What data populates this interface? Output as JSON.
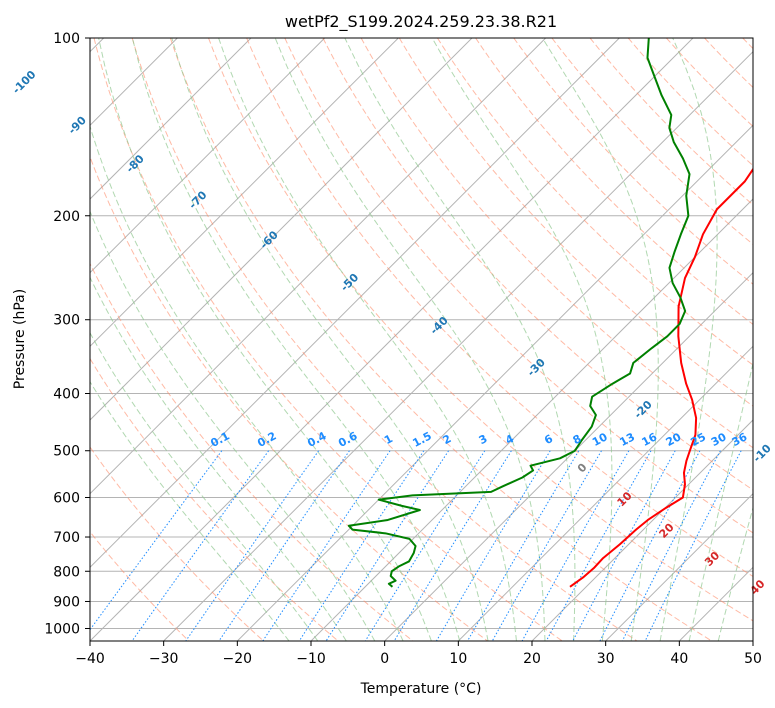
{
  "chart_data": {
    "type": "skew-t",
    "title": "wetPf2_S199.2024.259.23.38.R21",
    "xlabel": "Temperature (°C)",
    "ylabel": "Pressure (hPa)",
    "xlim": [
      -40,
      50
    ],
    "ylim": [
      1050,
      100
    ],
    "x_ticks": [
      "−40",
      "−30",
      "−20",
      "−10",
      "0",
      "10",
      "20",
      "30",
      "40",
      "50"
    ],
    "x_tick_values": [
      -40,
      -30,
      -20,
      -10,
      0,
      10,
      20,
      30,
      40,
      50
    ],
    "y_ticks": [
      "100",
      "200",
      "300",
      "400",
      "500",
      "600",
      "700",
      "800",
      "900",
      "1000"
    ],
    "y_tick_values": [
      100,
      200,
      300,
      400,
      500,
      600,
      700,
      800,
      900,
      1000
    ],
    "grid": true,
    "series": [
      {
        "color": "#ff0000",
        "points": [
          [
            17.8,
            850
          ],
          [
            18.3,
            820
          ],
          [
            18.5,
            790
          ],
          [
            18.4,
            760
          ],
          [
            18.8,
            720
          ],
          [
            19.0,
            680
          ],
          [
            19.3,
            655
          ],
          [
            20.1,
            625
          ],
          [
            21.0,
            600
          ],
          [
            19.5,
            570
          ],
          [
            17.8,
            545
          ],
          [
            16.5,
            520
          ],
          [
            15.6,
            500
          ],
          [
            14.2,
            470
          ],
          [
            12.0,
            440
          ],
          [
            9.0,
            410
          ],
          [
            6.0,
            385
          ],
          [
            2.5,
            355
          ],
          [
            -1.5,
            320
          ],
          [
            -5.5,
            285
          ],
          [
            -8.5,
            255
          ],
          [
            -10.0,
            235
          ],
          [
            -12.0,
            215
          ],
          [
            -13.5,
            195
          ],
          [
            -13.5,
            175
          ],
          [
            -14.5,
            160
          ],
          [
            -16.5,
            145
          ],
          [
            -19.5,
            130
          ],
          [
            -24.0,
            120
          ],
          [
            -27.5,
            108
          ],
          [
            -30.5,
            100
          ]
        ]
      },
      {
        "color": "#008000",
        "points": [
          [
            -6.3,
            850
          ],
          [
            -7.2,
            840
          ],
          [
            -6.7,
            830
          ],
          [
            -8.0,
            815
          ],
          [
            -8.5,
            800
          ],
          [
            -8.2,
            785
          ],
          [
            -7.5,
            770
          ],
          [
            -8.0,
            745
          ],
          [
            -8.7,
            725
          ],
          [
            -10.5,
            705
          ],
          [
            -14.5,
            690
          ],
          [
            -19.5,
            680
          ],
          [
            -20.5,
            670
          ],
          [
            -16.0,
            655
          ],
          [
            -13.0,
            630
          ],
          [
            -16.0,
            620
          ],
          [
            -20.0,
            605
          ],
          [
            -16.0,
            595
          ],
          [
            -5.8,
            587
          ],
          [
            -5.0,
            575
          ],
          [
            -3.5,
            555
          ],
          [
            -3.0,
            540
          ],
          [
            -4.0,
            530
          ],
          [
            -1.0,
            515
          ],
          [
            0.0,
            500
          ],
          [
            -0.5,
            480
          ],
          [
            -1.0,
            455
          ],
          [
            -2.0,
            435
          ],
          [
            -4.0,
            420
          ],
          [
            -5.0,
            405
          ],
          [
            -4.0,
            385
          ],
          [
            -3.0,
            370
          ],
          [
            -4.0,
            355
          ],
          [
            -3.5,
            335
          ],
          [
            -3.0,
            320
          ],
          [
            -3.0,
            305
          ],
          [
            -4.0,
            290
          ],
          [
            -6.5,
            275
          ],
          [
            -9.5,
            260
          ],
          [
            -12.0,
            245
          ],
          [
            -13.5,
            230
          ],
          [
            -15.0,
            215
          ],
          [
            -16.5,
            200
          ],
          [
            -19.5,
            185
          ],
          [
            -22.0,
            170
          ],
          [
            -25.0,
            160
          ],
          [
            -28.5,
            150
          ],
          [
            -31.0,
            142
          ],
          [
            -32.5,
            135
          ],
          [
            -36.5,
            125
          ],
          [
            -40.5,
            115
          ],
          [
            -43.5,
            108
          ],
          [
            -46.0,
            100
          ]
        ]
      }
    ],
    "dry_adiabat_labels": [
      "-100",
      "-90",
      "-80",
      "-70",
      "-60",
      "-50",
      "-40",
      "-30",
      "-20",
      "-10"
    ],
    "mixing_ratio_labels": [
      "0.1",
      "0.2",
      "0.4",
      "0.6",
      "1",
      "1.5",
      "2",
      "3",
      "4",
      "6",
      "8",
      "10",
      "13",
      "16",
      "20",
      "25",
      "30",
      "36"
    ],
    "moist_adiabat_labels": [
      "0",
      "10",
      "20",
      "30",
      "40"
    ],
    "colors": {
      "isotherm": "#b4b4b4",
      "dry_adiabat": "#ff8c69",
      "moist_adiabat": "#90c890",
      "mixing_ratio": "#1e8cff",
      "temperature": "#ff0000",
      "dewpoint": "#008000",
      "dry_label": "#1f77b4",
      "mixing_label": "#1e8cff",
      "moist_label": "#d62728"
    }
  }
}
